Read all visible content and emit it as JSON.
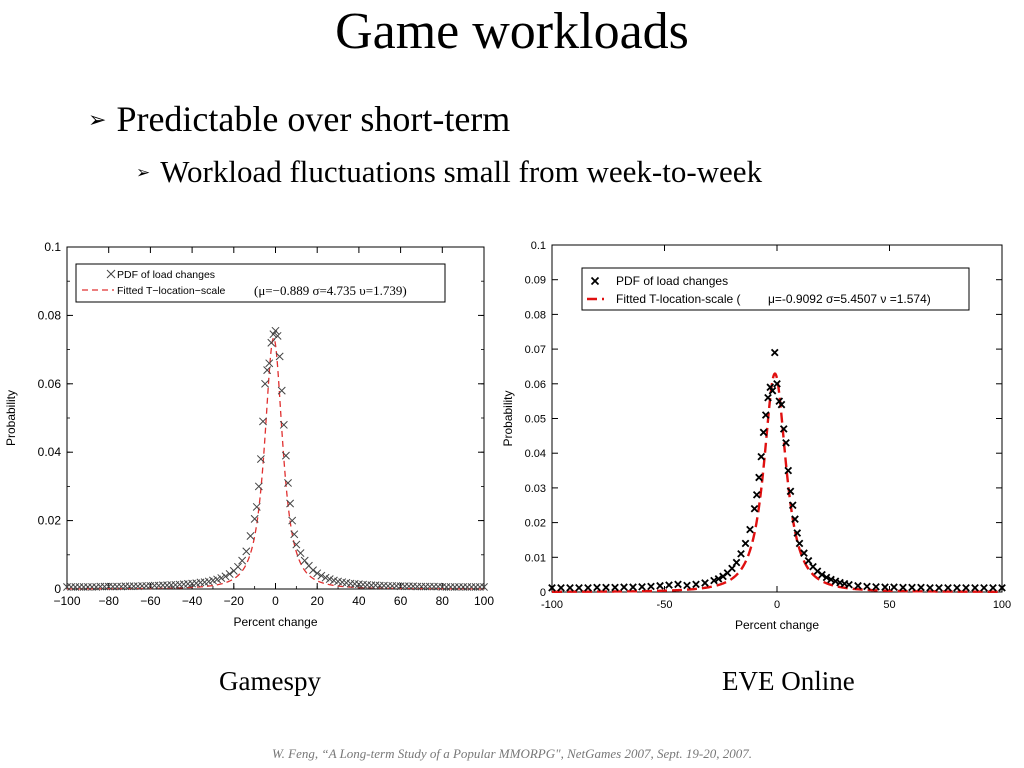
{
  "slide": {
    "title": "Game workloads",
    "bullet_level1": "Predictable over short-term",
    "bullet_level2": "Workload fluctuations small from week-to-week",
    "bullet_glyph": "➢",
    "captions": [
      "Gamespy",
      "EVE Online"
    ],
    "citation": "W. Feng, “A Long-term Study of a Popular MMORPG\", NetGames 2007, Sept. 19-20, 2007."
  },
  "chart_data": [
    {
      "type": "scatter",
      "title": "",
      "xlabel": "Percent change",
      "ylabel": "Probability",
      "xlim": [
        -100,
        100
      ],
      "ylim": [
        0,
        0.1
      ],
      "xticks": [
        -100,
        -80,
        -60,
        -40,
        -20,
        0,
        20,
        40,
        60,
        80,
        100
      ],
      "xtick_labels": [
        "−100",
        "−80",
        "−60",
        "−40",
        "−20",
        "0",
        "20",
        "40",
        "60",
        "80",
        "100"
      ],
      "yticks": [
        0,
        0.02,
        0.04,
        0.06,
        0.08,
        0.1
      ],
      "ytick_labels": [
        "0",
        "0.02",
        "0.04",
        "0.06",
        "0.08",
        "0.1"
      ],
      "grid": false,
      "legend_position": "top",
      "legend": [
        {
          "label": "PDF of load changes",
          "style": "x-marker",
          "color": "#444444"
        },
        {
          "label": "Fitted T−location−scale",
          "style": "dashed",
          "color": "#e03030"
        }
      ],
      "legend_params": "(μ=−0.889 σ=4.735 υ=1.739)",
      "fit": {
        "mu": -0.889,
        "sigma": 4.735,
        "nu": 1.739
      },
      "marker_style": "x-open",
      "marker_color": "#444444",
      "line_color": "#e03030",
      "points": {
        "x": [
          -100,
          -98,
          -96,
          -94,
          -92,
          -90,
          -88,
          -86,
          -84,
          -82,
          -80,
          -78,
          -76,
          -74,
          -72,
          -70,
          -68,
          -66,
          -64,
          -62,
          -60,
          -58,
          -56,
          -54,
          -52,
          -50,
          -48,
          -46,
          -44,
          -42,
          -40,
          -38,
          -36,
          -34,
          -32,
          -30,
          -28,
          -26,
          -24,
          -22,
          -20,
          -18,
          -16,
          -14,
          -12,
          -10,
          -9,
          -8,
          -7,
          -6,
          -5,
          -4,
          -3,
          -2,
          -1,
          0,
          1,
          2,
          3,
          4,
          5,
          6,
          7,
          8,
          9,
          10,
          12,
          14,
          16,
          18,
          20,
          22,
          24,
          26,
          28,
          30,
          32,
          34,
          36,
          38,
          40,
          42,
          44,
          46,
          48,
          50,
          52,
          54,
          56,
          58,
          60,
          62,
          64,
          66,
          68,
          70,
          72,
          74,
          76,
          78,
          80,
          82,
          84,
          86,
          88,
          90,
          92,
          94,
          96,
          98,
          100
        ],
        "y": [
          0.0006,
          0.0006,
          0.0006,
          0.0006,
          0.0006,
          0.0006,
          0.0006,
          0.0006,
          0.0007,
          0.0007,
          0.0007,
          0.0007,
          0.0007,
          0.0007,
          0.0008,
          0.0008,
          0.0008,
          0.0008,
          0.0009,
          0.0009,
          0.0009,
          0.001,
          0.001,
          0.0011,
          0.0011,
          0.0012,
          0.0012,
          0.0013,
          0.0014,
          0.0015,
          0.0016,
          0.0017,
          0.0019,
          0.002,
          0.0022,
          0.0025,
          0.0028,
          0.0032,
          0.0037,
          0.0044,
          0.0053,
          0.0065,
          0.0083,
          0.011,
          0.0155,
          0.0205,
          0.024,
          0.03,
          0.038,
          0.049,
          0.06,
          0.064,
          0.066,
          0.072,
          0.0745,
          0.0755,
          0.074,
          0.068,
          0.058,
          0.048,
          0.039,
          0.031,
          0.025,
          0.02,
          0.016,
          0.013,
          0.0105,
          0.0083,
          0.0068,
          0.0055,
          0.0046,
          0.0039,
          0.0033,
          0.0029,
          0.0025,
          0.0022,
          0.002,
          0.0018,
          0.0016,
          0.0015,
          0.0014,
          0.0013,
          0.0012,
          0.0011,
          0.0011,
          0.001,
          0.001,
          0.0009,
          0.0009,
          0.0009,
          0.0008,
          0.0008,
          0.0008,
          0.0008,
          0.0007,
          0.0007,
          0.0007,
          0.0007,
          0.0007,
          0.0007,
          0.0006,
          0.0006,
          0.0006,
          0.0006,
          0.0006,
          0.0006,
          0.0006,
          0.0006,
          0.0006,
          0.0006,
          0.0006
        ]
      }
    },
    {
      "type": "scatter",
      "title": "",
      "xlabel": "Percent change",
      "ylabel": "Probability",
      "xlim": [
        -100,
        100
      ],
      "ylim": [
        0,
        0.1
      ],
      "xticks": [
        -100,
        -50,
        0,
        50,
        100
      ],
      "xtick_labels": [
        "-100",
        "-50",
        "0",
        "50",
        "100"
      ],
      "yticks": [
        0,
        0.01,
        0.02,
        0.03,
        0.04,
        0.05,
        0.06,
        0.07,
        0.08,
        0.09,
        0.1
      ],
      "ytick_labels": [
        "0",
        "0.01",
        "0.02",
        "0.03",
        "0.04",
        "0.05",
        "0.06",
        "0.07",
        "0.08",
        "0.09",
        "0.1"
      ],
      "grid": false,
      "legend_position": "top",
      "legend": [
        {
          "label": "PDF of load changes",
          "style": "x-marker",
          "color": "#000000"
        },
        {
          "label": "Fitted T-location-scale (",
          "style": "dashed",
          "color": "#e01010"
        }
      ],
      "legend_params": "μ=-0.9092  σ=5.4507  ν =1.574)",
      "fit": {
        "mu": -0.9092,
        "sigma": 5.4507,
        "nu": 1.574
      },
      "marker_style": "x-bold",
      "marker_color": "#000000",
      "line_color": "#e01010",
      "points": {
        "x": [
          -100,
          -96,
          -92,
          -88,
          -84,
          -80,
          -76,
          -72,
          -68,
          -64,
          -60,
          -56,
          -52,
          -48,
          -44,
          -40,
          -36,
          -32,
          -28,
          -26,
          -24,
          -22,
          -20,
          -18,
          -16,
          -14,
          -12,
          -10,
          -9,
          -8,
          -7,
          -6,
          -5,
          -4,
          -3,
          -2,
          -1,
          0,
          1,
          2,
          3,
          4,
          5,
          6,
          7,
          8,
          9,
          10,
          12,
          14,
          16,
          18,
          20,
          22,
          24,
          26,
          28,
          30,
          32,
          36,
          40,
          44,
          48,
          52,
          56,
          60,
          64,
          68,
          72,
          76,
          80,
          84,
          88,
          92,
          96,
          100
        ],
        "y": [
          0.0012,
          0.0012,
          0.0012,
          0.0012,
          0.0012,
          0.0013,
          0.0013,
          0.0013,
          0.0014,
          0.0014,
          0.0015,
          0.0016,
          0.0018,
          0.002,
          0.0022,
          0.0019,
          0.0022,
          0.0026,
          0.0033,
          0.0038,
          0.0045,
          0.0055,
          0.0068,
          0.0085,
          0.011,
          0.014,
          0.018,
          0.024,
          0.028,
          0.033,
          0.039,
          0.046,
          0.051,
          0.056,
          0.059,
          0.058,
          0.069,
          0.06,
          0.055,
          0.054,
          0.047,
          0.043,
          0.035,
          0.029,
          0.025,
          0.021,
          0.017,
          0.014,
          0.0112,
          0.009,
          0.0073,
          0.006,
          0.005,
          0.0042,
          0.0036,
          0.0031,
          0.0027,
          0.0024,
          0.0021,
          0.0018,
          0.0016,
          0.0015,
          0.0014,
          0.0014,
          0.0013,
          0.0013,
          0.0013,
          0.0012,
          0.0012,
          0.0012,
          0.0012,
          0.0012,
          0.0012,
          0.0012,
          0.0012,
          0.0012
        ]
      }
    }
  ]
}
